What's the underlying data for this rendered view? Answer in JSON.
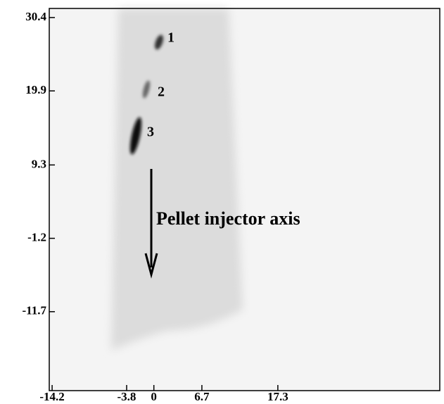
{
  "chart_data": {
    "type": "image",
    "xlim": [
      -14.6,
      39.9
    ],
    "xticks": [
      -14.2,
      -3.8,
      0,
      6.7,
      17.3
    ],
    "ylim": [
      -23.0,
      31.7
    ],
    "yticks": [
      30.4,
      19.9,
      9.3,
      -1.2,
      -11.7
    ],
    "annotations": [
      "1",
      "2",
      "3",
      "Pellet injector axis"
    ]
  }
}
